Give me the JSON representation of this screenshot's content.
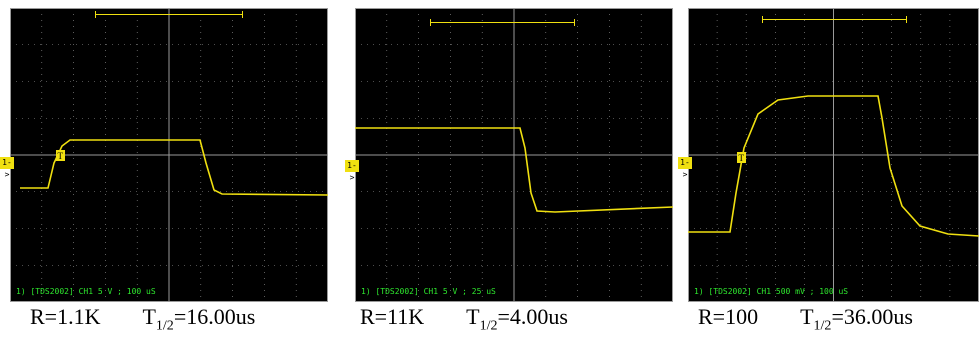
{
  "panels": [
    {
      "scope_label": "1) [TDS2002] CH1 5 V ; 100 uS",
      "caption": {
        "r": "R=1.1K",
        "t_prefix": "T",
        "t_sub": "1/2",
        "t_value": "=16.00us"
      },
      "marker_ch": "1->",
      "trigger": "T"
    },
    {
      "scope_label": "1) [TDS2002] CH1 5 V ; 25 uS",
      "caption": {
        "r": "R=11K",
        "t_prefix": "T",
        "t_sub": "1/2",
        "t_value": "=4.00us"
      },
      "marker_ch": "1->",
      "trigger": ""
    },
    {
      "scope_label": "1) [TDS2002] CH1 500 mV ; 100 uS",
      "caption": {
        "r": "R=100",
        "t_prefix": "T",
        "t_sub": "1/2",
        "t_value": "=36.00us"
      },
      "marker_ch": "1->",
      "trigger": "T"
    }
  ],
  "colors": {
    "trace": "#f0e010",
    "grid": "#9a9a9a",
    "screen": "#000000",
    "label": "#2ee82e"
  }
}
